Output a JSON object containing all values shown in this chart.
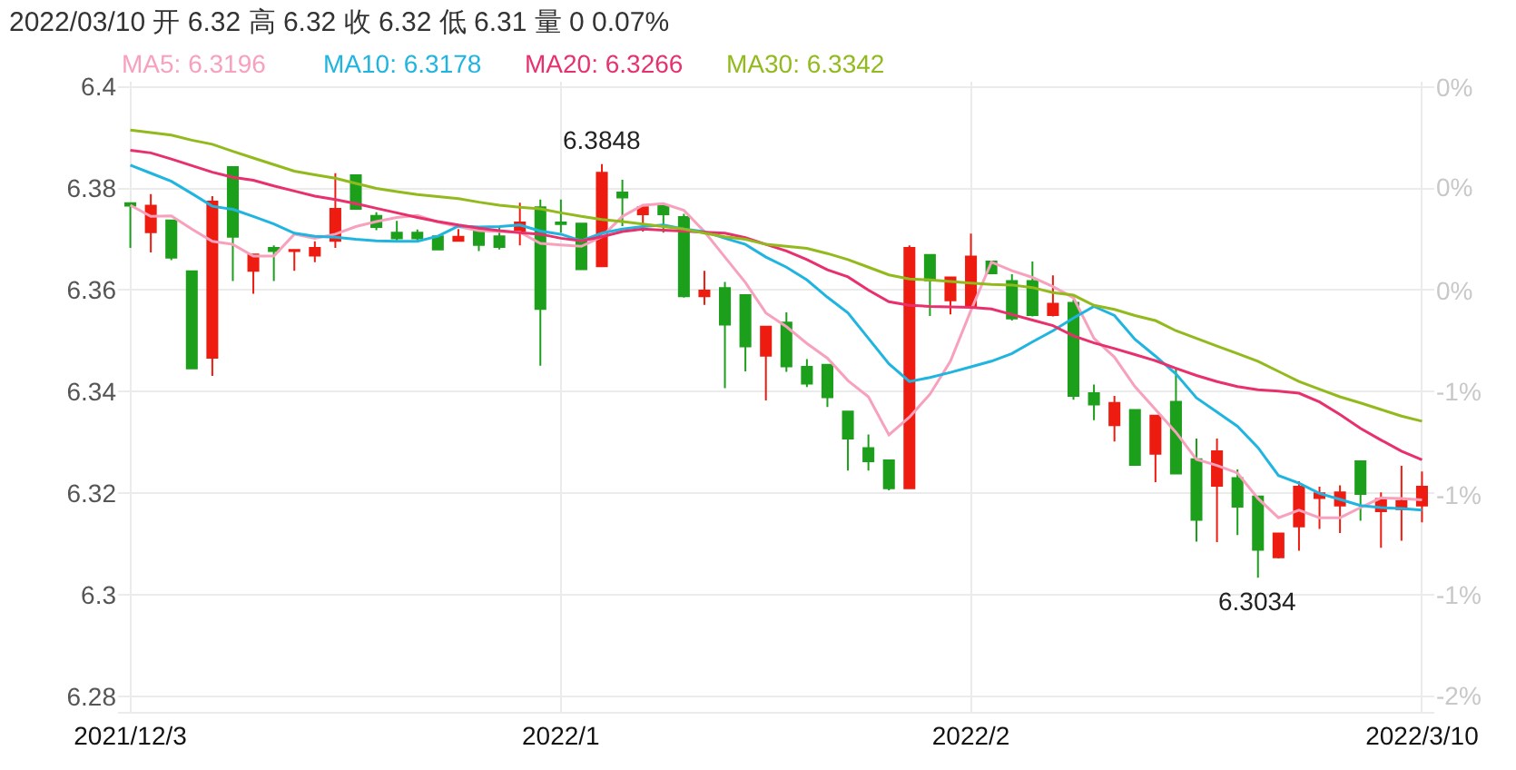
{
  "chart_data": {
    "type": "candlestick",
    "title": "2022/03/10 开 6.32 高 6.32 收 6.32 低 6.31 量 0 0.07%",
    "categories": [
      "2021/12/3",
      null,
      null,
      null,
      null,
      null,
      null,
      null,
      null,
      null,
      null,
      null,
      null,
      null,
      null,
      null,
      null,
      null,
      null,
      null,
      null,
      "2022/1",
      null,
      null,
      null,
      null,
      null,
      null,
      null,
      null,
      null,
      null,
      null,
      null,
      null,
      null,
      null,
      null,
      null,
      null,
      null,
      "2022/2",
      null,
      null,
      null,
      null,
      null,
      null,
      null,
      null,
      null,
      null,
      null,
      null,
      null,
      null,
      null,
      null,
      null,
      null,
      null,
      null,
      null,
      "2022/3/10"
    ],
    "ohlc": [
      [
        6.3771,
        6.3771,
        6.3683,
        6.3766
      ],
      [
        6.3714,
        6.3789,
        6.3674,
        6.3766
      ],
      [
        6.3737,
        6.3737,
        6.3659,
        6.3664
      ],
      [
        6.3637,
        6.3637,
        6.3446,
        6.3446
      ],
      [
        6.3467,
        6.3785,
        6.3431,
        6.3774
      ],
      [
        6.3842,
        6.3842,
        6.3618,
        6.3705
      ],
      [
        6.3638,
        6.367,
        6.3593,
        6.367
      ],
      [
        6.3683,
        6.3688,
        6.3618,
        6.3677
      ],
      [
        6.3677,
        6.3679,
        6.3638,
        6.3679
      ],
      [
        6.3668,
        6.3696,
        6.3655,
        6.3683
      ],
      [
        6.3697,
        6.383,
        6.3683,
        6.376
      ],
      [
        6.3826,
        6.3826,
        6.3758,
        6.376
      ],
      [
        6.3746,
        6.3753,
        6.3718,
        6.3724
      ],
      [
        6.3713,
        6.3736,
        6.3697,
        6.3702
      ],
      [
        6.3713,
        6.3719,
        6.3697,
        6.3702
      ],
      [
        6.3706,
        6.3706,
        6.368,
        6.368
      ],
      [
        6.3697,
        6.372,
        6.3697,
        6.3705
      ],
      [
        6.372,
        6.3724,
        6.3677,
        6.3689
      ],
      [
        6.3706,
        6.3724,
        6.368,
        6.3685
      ],
      [
        6.3716,
        6.3772,
        6.3688,
        6.3733
      ],
      [
        6.3763,
        6.3778,
        6.3451,
        6.3563
      ],
      [
        6.3733,
        6.3778,
        6.3713,
        6.373
      ],
      [
        6.3731,
        6.3731,
        6.3641,
        6.3641
      ],
      [
        6.3647,
        6.3848,
        6.3647,
        6.3831
      ],
      [
        6.3792,
        6.3817,
        6.3726,
        6.3782
      ],
      [
        6.3749,
        6.3763,
        6.3715,
        6.3763
      ],
      [
        6.3766,
        6.3766,
        6.3713,
        6.3749
      ],
      [
        6.3744,
        6.375,
        6.3585,
        6.3588
      ],
      [
        6.3588,
        6.3638,
        6.3571,
        6.3599
      ],
      [
        6.3604,
        6.3616,
        6.3407,
        6.3532
      ],
      [
        6.359,
        6.359,
        6.344,
        6.3489
      ],
      [
        6.3471,
        6.3528,
        6.3383,
        6.3528
      ],
      [
        6.3536,
        6.3556,
        6.3439,
        6.345
      ],
      [
        6.3449,
        6.3464,
        6.3409,
        6.3416
      ],
      [
        6.3453,
        6.3453,
        6.337,
        6.3389
      ],
      [
        6.3361,
        6.3361,
        6.3245,
        6.3308
      ],
      [
        6.3289,
        6.3316,
        6.3245,
        6.3263
      ],
      [
        6.3265,
        6.3265,
        6.3206,
        6.321
      ],
      [
        6.321,
        6.3688,
        6.321,
        6.3683
      ],
      [
        6.3669,
        6.3669,
        6.3549,
        6.3619
      ],
      [
        6.358,
        6.3625,
        6.3552,
        6.3625
      ],
      [
        6.3568,
        6.3711,
        6.3568,
        6.3666
      ],
      [
        6.3656,
        6.3656,
        6.3631,
        6.3633
      ],
      [
        6.3618,
        6.3631,
        6.354,
        6.3544
      ],
      [
        6.3618,
        6.3656,
        6.3548,
        6.3551
      ],
      [
        6.3551,
        6.3629,
        6.3548,
        6.3573
      ],
      [
        6.3575,
        6.3581,
        6.3384,
        6.3392
      ],
      [
        6.3397,
        6.3414,
        6.3344,
        6.3375
      ],
      [
        6.3334,
        6.3392,
        6.3302,
        6.3378
      ],
      [
        6.3364,
        6.3364,
        6.3256,
        6.3256
      ],
      [
        6.3278,
        6.3353,
        6.3222,
        6.3353
      ],
      [
        6.338,
        6.3447,
        6.3239,
        6.3239
      ],
      [
        6.3267,
        6.3308,
        6.3105,
        6.3148
      ],
      [
        6.3215,
        6.3308,
        6.3104,
        6.3283
      ],
      [
        6.323,
        6.3247,
        6.3118,
        6.3174
      ],
      [
        6.3194,
        6.3194,
        6.3034,
        6.3089
      ],
      [
        6.3074,
        6.3121,
        6.3072,
        6.3121
      ],
      [
        6.3135,
        6.3224,
        6.3087,
        6.3213
      ],
      [
        6.3191,
        6.3213,
        6.313,
        6.32
      ],
      [
        6.3176,
        6.3216,
        6.3122,
        6.3202
      ],
      [
        6.3263,
        6.3263,
        6.3146,
        6.3199
      ],
      [
        6.3165,
        6.3202,
        6.3093,
        6.3189
      ],
      [
        6.3169,
        6.3254,
        6.3107,
        6.3185
      ],
      [
        6.3176,
        6.3243,
        6.3143,
        6.3213
      ]
    ],
    "colors": [
      "#1ca01c",
      "#ee1c10",
      "#1ca01c",
      "#1ca01c",
      "#ee1c10",
      "#1ca01c",
      "#ee1c10",
      "#1ca01c",
      "#ee1c10",
      "#ee1c10",
      "#ee1c10",
      "#1ca01c",
      "#1ca01c",
      "#1ca01c",
      "#1ca01c",
      "#1ca01c",
      "#ee1c10",
      "#1ca01c",
      "#1ca01c",
      "#ee1c10",
      "#1ca01c",
      "#1ca01c",
      "#1ca01c",
      "#ee1c10",
      "#1ca01c",
      "#ee1c10",
      "#1ca01c",
      "#1ca01c",
      "#ee1c10",
      "#1ca01c",
      "#1ca01c",
      "#ee1c10",
      "#1ca01c",
      "#1ca01c",
      "#1ca01c",
      "#1ca01c",
      "#1ca01c",
      "#1ca01c",
      "#ee1c10",
      "#1ca01c",
      "#ee1c10",
      "#ee1c10",
      "#1ca01c",
      "#1ca01c",
      "#1ca01c",
      "#ee1c10",
      "#1ca01c",
      "#1ca01c",
      "#ee1c10",
      "#1ca01c",
      "#ee1c10",
      "#1ca01c",
      "#1ca01c",
      "#ee1c10",
      "#1ca01c",
      "#1ca01c",
      "#ee1c10",
      "#ee1c10",
      "#ee1c10",
      "#ee1c10",
      "#1ca01c",
      "#ee1c10",
      "#ee1c10",
      "#ee1c10"
    ],
    "series": [
      {
        "type": "line",
        "name": "MA5: 6.3196",
        "color": "#f7a1bd",
        "values": [
          6.3767,
          6.3745,
          6.3746,
          6.372,
          6.3696,
          6.369,
          6.3667,
          6.3667,
          6.371,
          6.3702,
          6.371,
          6.3725,
          6.3735,
          6.3743,
          6.3747,
          6.3734,
          6.3725,
          6.3717,
          6.3715,
          6.3714,
          6.3692,
          6.3689,
          6.3686,
          6.3705,
          6.3745,
          6.3767,
          6.377,
          6.3757,
          6.3715,
          6.3665,
          6.3615,
          6.3555,
          6.3528,
          6.3495,
          6.3466,
          6.3422,
          6.339,
          6.3315,
          6.335,
          6.3395,
          6.346,
          6.356,
          6.3655,
          6.3638,
          6.3625,
          6.3607,
          6.3585,
          6.3505,
          6.3468,
          6.341,
          6.3365,
          6.332,
          6.3267,
          6.3255,
          6.324,
          6.319,
          6.3152,
          6.3167,
          6.3152,
          6.3152,
          6.3172,
          6.3191,
          6.319,
          6.3187
        ]
      },
      {
        "type": "line",
        "name": "MA10: 6.3178",
        "color": "#1fb5e0",
        "values": [
          6.3846,
          6.383,
          6.3814,
          6.379,
          6.3765,
          6.3759,
          6.3745,
          6.373,
          6.3712,
          6.3706,
          6.3704,
          6.37,
          6.3697,
          6.3696,
          6.3696,
          6.3706,
          6.3726,
          6.3724,
          6.3725,
          6.3728,
          6.3716,
          6.371,
          6.3697,
          6.3712,
          6.372,
          6.3725,
          6.3728,
          6.372,
          6.3715,
          6.3702,
          6.369,
          6.3665,
          6.3645,
          6.362,
          6.3586,
          6.3555,
          6.3505,
          6.3455,
          6.342,
          6.3428,
          6.3438,
          6.3449,
          6.346,
          6.3475,
          6.3498,
          6.352,
          6.3545,
          6.3568,
          6.355,
          6.3503,
          6.347,
          6.3435,
          6.3388,
          6.336,
          6.3332,
          6.329,
          6.3235,
          6.322,
          6.32,
          6.3188,
          6.3176,
          6.3172,
          6.317,
          6.3167
        ]
      },
      {
        "type": "line",
        "name": "MA20: 6.3266",
        "color": "#e8316c",
        "values": [
          6.3875,
          6.387,
          6.3858,
          6.3845,
          6.3832,
          6.3822,
          6.3816,
          6.3805,
          6.3795,
          6.3785,
          6.3778,
          6.377,
          6.3761,
          6.3752,
          6.3743,
          6.3735,
          6.3728,
          6.3722,
          6.3717,
          6.3713,
          6.371,
          6.3702,
          6.3697,
          6.3705,
          6.3715,
          6.372,
          6.3718,
          6.3716,
          6.3714,
          6.3712,
          6.3703,
          6.369,
          6.3677,
          6.366,
          6.364,
          6.3626,
          6.36,
          6.3577,
          6.357,
          6.3568,
          6.3567,
          6.3566,
          6.3563,
          6.3552,
          6.3541,
          6.353,
          6.351,
          6.3496,
          6.3485,
          6.3473,
          6.3461,
          6.3446,
          6.3432,
          6.342,
          6.341,
          6.3404,
          6.3401,
          6.3397,
          6.338,
          6.3355,
          6.3328,
          6.3305,
          6.3283,
          6.3266
        ]
      },
      {
        "type": "line",
        "name": "MA30: 6.3342",
        "color": "#92ba1c",
        "values": [
          6.3915,
          6.391,
          6.3905,
          6.3895,
          6.3887,
          6.3873,
          6.386,
          6.3847,
          6.3834,
          6.3827,
          6.382,
          6.381,
          6.38,
          6.3794,
          6.3788,
          6.3784,
          6.378,
          6.3773,
          6.3767,
          6.3763,
          6.376,
          6.3752,
          6.3745,
          6.3739,
          6.3735,
          6.373,
          6.3725,
          6.372,
          6.3712,
          6.3705,
          6.37,
          6.369,
          6.3686,
          6.3682,
          6.3672,
          6.366,
          6.3645,
          6.363,
          6.3622,
          6.362,
          6.3617,
          6.3614,
          6.3611,
          6.361,
          6.3605,
          6.3595,
          6.359,
          6.357,
          6.3562,
          6.355,
          6.354,
          6.352,
          6.3505,
          6.349,
          6.3475,
          6.346,
          6.344,
          6.342,
          6.3405,
          6.339,
          6.3378,
          6.3365,
          6.3352,
          6.3342
        ]
      }
    ],
    "annotations": [
      {
        "text": "6.3848",
        "y": 6.3848
      },
      {
        "text": "6.3034",
        "y": 6.3034
      }
    ],
    "ylim": [
      6.277,
      6.401
    ],
    "yticks": [
      6.28,
      6.3,
      6.32,
      6.34,
      6.36,
      6.38,
      6.4
    ],
    "y2lim": [
      -1.631,
      0.316
    ],
    "y2ticks": [
      {
        "value": -1.58,
        "label": "-2%"
      },
      {
        "value": -1.27,
        "label": "-1%"
      },
      {
        "value": -0.96,
        "label": "-1%"
      },
      {
        "value": -0.64,
        "label": "-1%"
      },
      {
        "value": -0.33,
        "label": "0%"
      },
      {
        "value": -0.01,
        "label": "0%"
      },
      {
        "value": 0.3,
        "label": "0%"
      }
    ],
    "grid": true,
    "legend": false
  }
}
